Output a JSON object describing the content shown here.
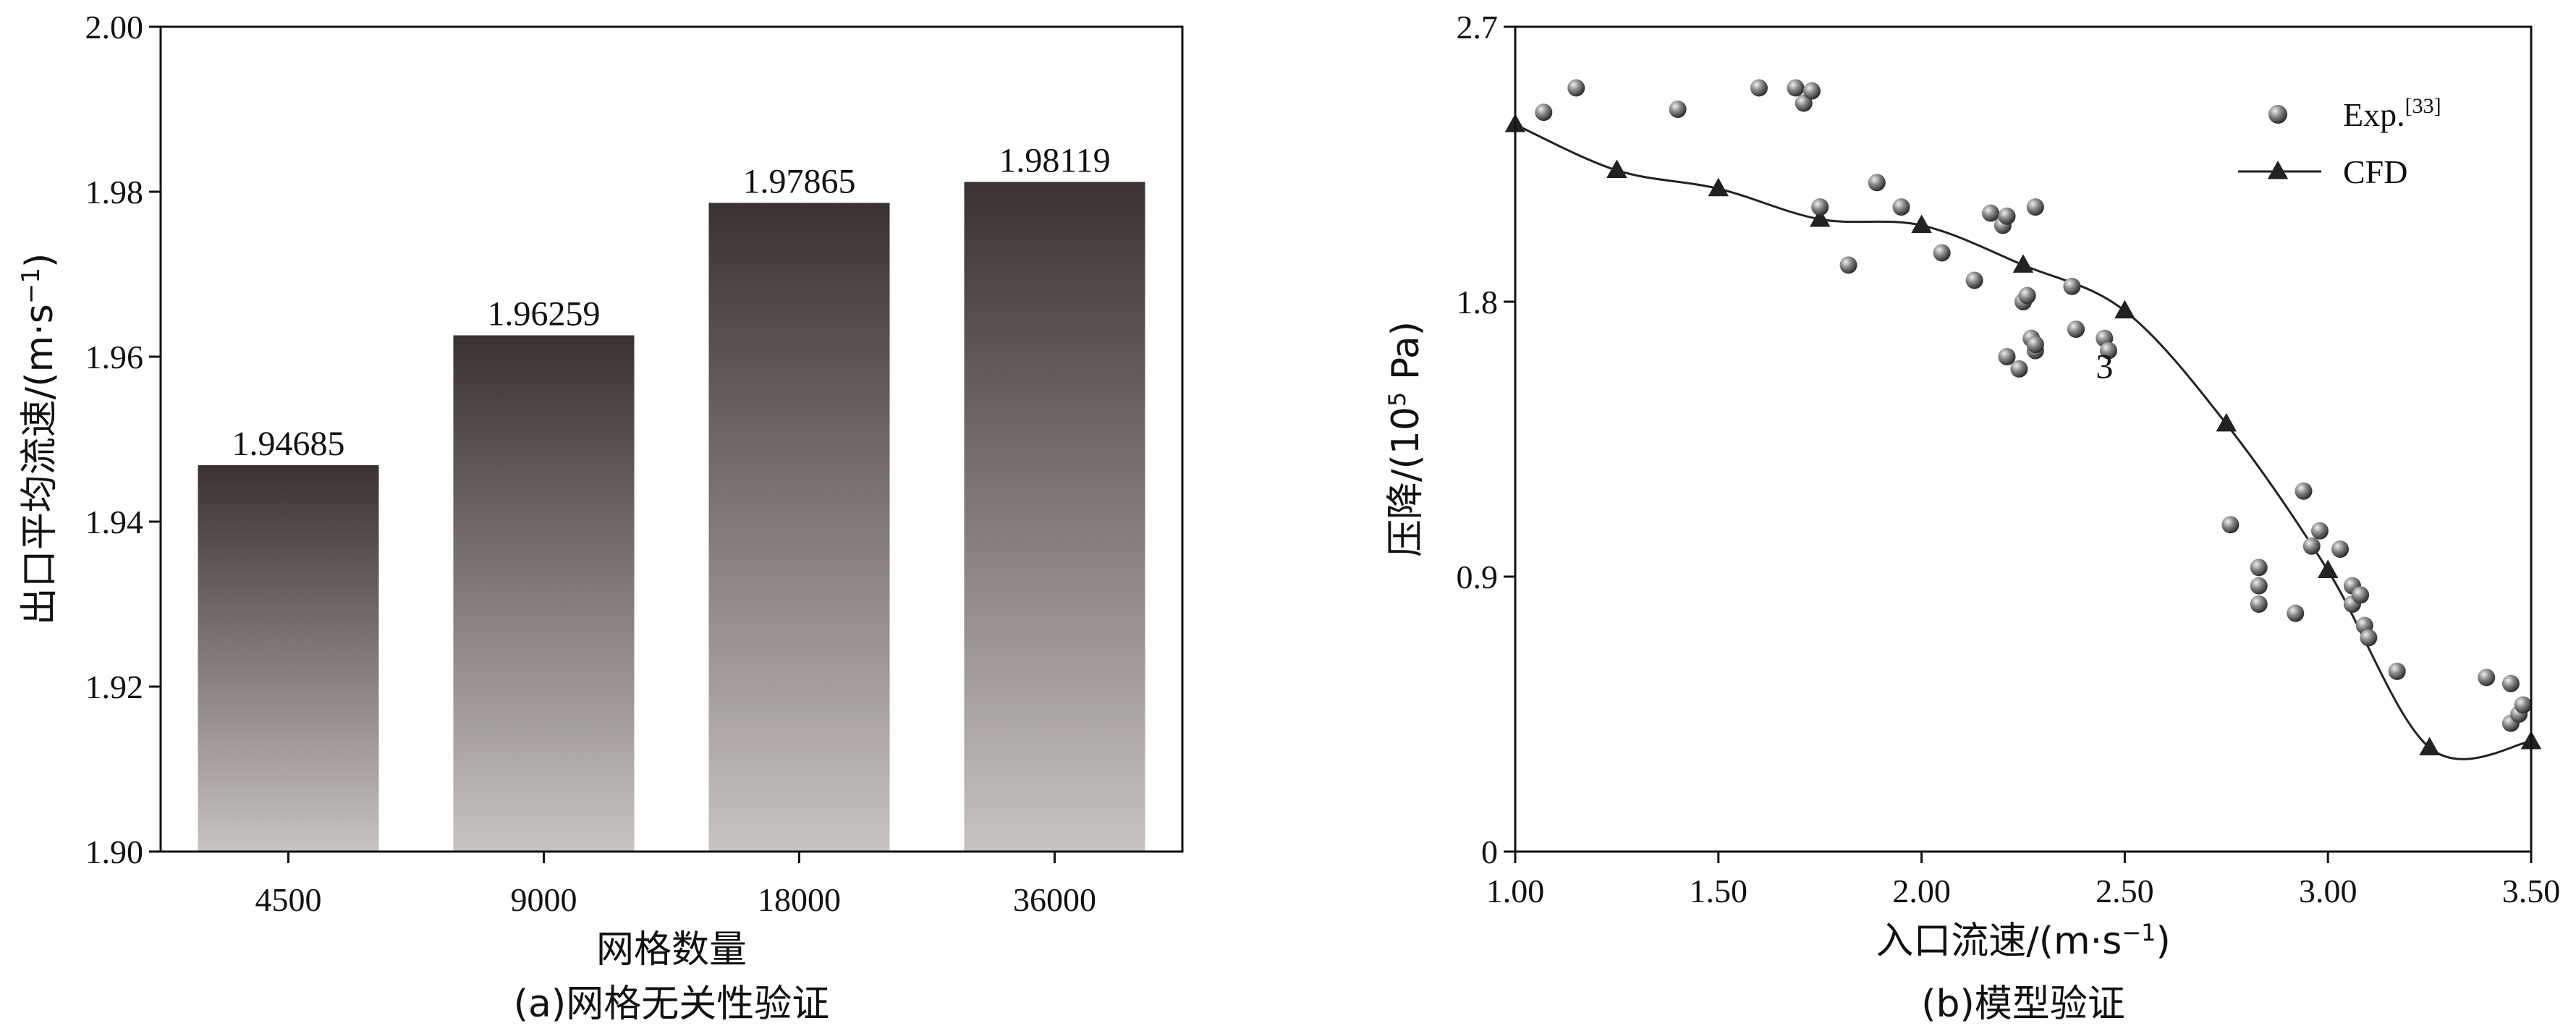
{
  "chart_data": [
    {
      "type": "bar",
      "panel": "a",
      "caption": "(a)网格无关性验证",
      "xlabel": "网格数量",
      "ylabel": "出口平均流速/(m·s",
      "ylabel_sup": "−1",
      "ylabel_close": ")",
      "categories": [
        "4500",
        "9000",
        "18000",
        "36000"
      ],
      "values": [
        1.94685,
        1.96259,
        1.97865,
        1.98119
      ],
      "value_labels": [
        "1.94685",
        "1.96259",
        "1.97865",
        "1.98119"
      ],
      "ylim": [
        1.9,
        2.0
      ],
      "yticks": [
        "1.90",
        "1.92",
        "1.94",
        "1.96",
        "1.98",
        "2.00"
      ],
      "bar_gradient": [
        "#3a3230",
        "#c8c2c0"
      ]
    },
    {
      "type": "scatter+line",
      "panel": "b",
      "caption": "(b)模型验证",
      "xlabel": "入口流速/(m·s",
      "xlabel_sup": "−1",
      "xlabel_close": ")",
      "ylabel": "压降/(10",
      "ylabel_sup": "5",
      "ylabel_close": " Pa)",
      "xlim": [
        1.0,
        3.5
      ],
      "ylim": [
        0,
        2.7
      ],
      "xticks": [
        "1.00",
        "1.50",
        "2.00",
        "2.50",
        "3.00",
        "3.50"
      ],
      "yticks": [
        "0",
        "0.9",
        "1.8",
        "2.7"
      ],
      "legend_position": "top-right",
      "annotation": "3",
      "series": [
        {
          "name": "Exp.",
          "name_sup": "[33]",
          "marker": "sphere",
          "x": [
            1.07,
            1.15,
            1.4,
            1.6,
            1.69,
            1.71,
            1.73,
            1.75,
            1.82,
            1.89,
            1.95,
            2.05,
            2.13,
            2.17,
            2.2,
            2.21,
            2.21,
            2.24,
            2.25,
            2.26,
            2.27,
            2.28,
            2.28,
            2.28,
            2.37,
            2.38,
            2.45,
            2.46,
            2.76,
            2.83,
            2.83,
            2.83,
            2.92,
            2.94,
            2.96,
            2.98,
            3.03,
            3.06,
            3.06,
            3.08,
            3.09,
            3.1,
            3.17,
            3.39,
            3.45,
            3.45,
            3.47,
            3.48
          ],
          "y": [
            2.42,
            2.5,
            2.43,
            2.5,
            2.5,
            2.45,
            2.49,
            2.11,
            1.92,
            2.19,
            2.11,
            1.96,
            1.87,
            2.09,
            2.05,
            1.62,
            2.08,
            1.58,
            1.8,
            1.82,
            1.68,
            1.64,
            1.66,
            2.11,
            1.85,
            1.71,
            1.68,
            1.64,
            1.07,
            0.93,
            0.87,
            0.81,
            0.78,
            1.18,
            1.0,
            1.05,
            0.99,
            0.87,
            0.81,
            0.84,
            0.74,
            0.7,
            0.59,
            0.57,
            0.55,
            0.42,
            0.45,
            0.48
          ]
        },
        {
          "name": "CFD",
          "marker": "triangle",
          "x": [
            1.0,
            1.25,
            1.5,
            1.75,
            2.0,
            2.25,
            2.5,
            2.75,
            3.0,
            3.25,
            3.5
          ],
          "y": [
            2.38,
            2.23,
            2.17,
            2.07,
            2.05,
            1.92,
            1.77,
            1.4,
            0.92,
            0.34,
            0.36
          ]
        }
      ]
    }
  ]
}
